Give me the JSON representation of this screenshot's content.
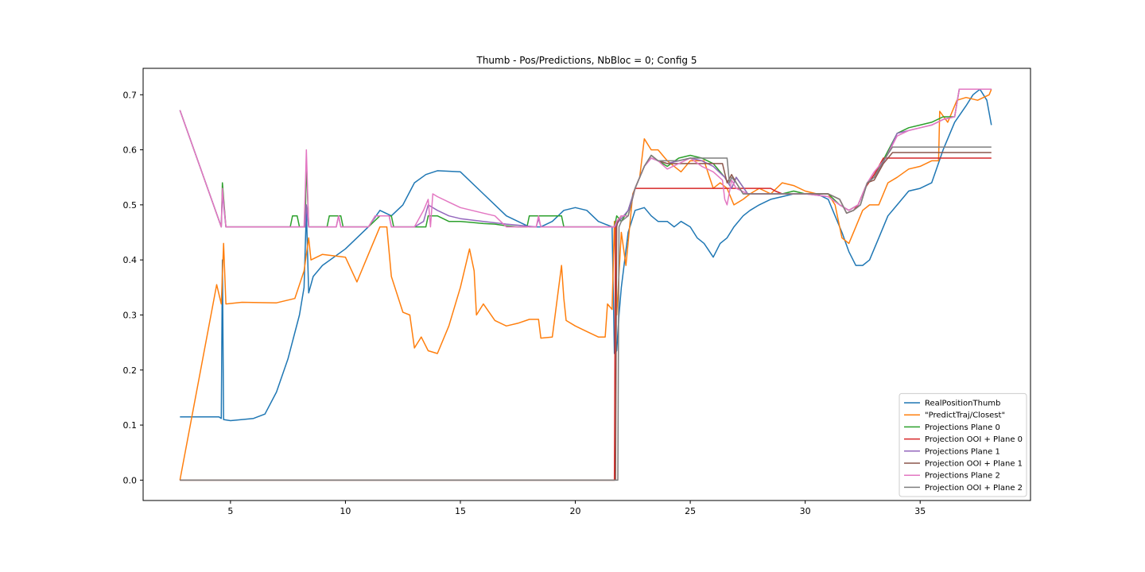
{
  "chart_data": {
    "type": "line",
    "title": "Thumb - Pos/Predictions, NbBloc = 0; Config 5",
    "xlabel": "",
    "ylabel": "",
    "xlim": [
      1.2,
      39.8
    ],
    "ylim": [
      -0.037,
      0.748
    ],
    "xticks": [
      5,
      10,
      15,
      20,
      25,
      30,
      35
    ],
    "yticks": [
      0.0,
      0.1,
      0.2,
      0.3,
      0.4,
      0.5,
      0.6,
      0.7
    ],
    "grid": false,
    "legend_position": "lower-right",
    "series": [
      {
        "name": "RealPositionThumb",
        "color": "#1f77b4",
        "x": [
          2.8,
          4.0,
          4.5,
          4.6,
          4.65,
          4.7,
          5.0,
          6.0,
          6.5,
          7.0,
          7.5,
          8.0,
          8.2,
          8.3,
          8.4,
          8.6,
          9.0,
          10.0,
          11.0,
          11.5,
          12.0,
          12.5,
          13.0,
          13.5,
          14.0,
          15.0,
          16.0,
          17.0,
          18.0,
          18.5,
          19.0,
          19.5,
          20.0,
          20.5,
          21.0,
          21.6,
          21.7,
          21.8,
          21.9,
          22.0,
          22.3,
          22.6,
          23.0,
          23.3,
          23.6,
          24.0,
          24.3,
          24.6,
          25.0,
          25.3,
          25.6,
          26.0,
          26.3,
          26.6,
          26.9,
          27.3,
          27.6,
          28.0,
          28.5,
          29.0,
          29.5,
          30.0,
          30.5,
          31.0,
          31.3,
          31.6,
          31.9,
          32.2,
          32.5,
          32.8,
          33.2,
          33.6,
          34.0,
          34.5,
          35.0,
          35.5,
          36.0,
          36.5,
          37.0,
          37.3,
          37.6,
          37.9,
          38.1
        ],
        "y": [
          0.115,
          0.115,
          0.115,
          0.112,
          0.4,
          0.11,
          0.108,
          0.112,
          0.12,
          0.16,
          0.22,
          0.3,
          0.35,
          0.49,
          0.34,
          0.37,
          0.39,
          0.42,
          0.46,
          0.49,
          0.48,
          0.5,
          0.54,
          0.555,
          0.562,
          0.56,
          0.52,
          0.48,
          0.46,
          0.46,
          0.47,
          0.49,
          0.495,
          0.49,
          0.47,
          0.46,
          0.23,
          0.235,
          0.3,
          0.35,
          0.45,
          0.49,
          0.495,
          0.48,
          0.47,
          0.47,
          0.46,
          0.47,
          0.46,
          0.44,
          0.43,
          0.405,
          0.43,
          0.44,
          0.46,
          0.48,
          0.49,
          0.5,
          0.51,
          0.515,
          0.52,
          0.52,
          0.52,
          0.51,
          0.48,
          0.45,
          0.415,
          0.39,
          0.39,
          0.4,
          0.44,
          0.48,
          0.5,
          0.525,
          0.53,
          0.54,
          0.6,
          0.65,
          0.68,
          0.7,
          0.71,
          0.69,
          0.645
        ]
      },
      {
        "name": "\"PredictTraj/Closest\"",
        "color": "#ff7f0e",
        "x": [
          2.8,
          4.4,
          4.6,
          4.7,
          4.8,
          5.5,
          7.0,
          7.8,
          8.2,
          8.4,
          8.5,
          9.0,
          10.0,
          10.5,
          11.0,
          11.5,
          11.8,
          12.0,
          12.5,
          12.8,
          13.0,
          13.3,
          13.6,
          14.0,
          14.5,
          15.0,
          15.4,
          15.6,
          15.7,
          16.0,
          16.5,
          17.0,
          17.5,
          18.0,
          18.4,
          18.5,
          19.0,
          19.4,
          19.5,
          19.6,
          20.0,
          20.5,
          21.0,
          21.3,
          21.4,
          21.6,
          21.7,
          21.8,
          22.0,
          22.2,
          22.5,
          22.8,
          23.0,
          23.3,
          23.6,
          24.0,
          24.3,
          24.6,
          25.0,
          25.3,
          25.6,
          26.0,
          26.3,
          26.6,
          26.9,
          27.3,
          27.6,
          28.0,
          28.5,
          29.0,
          29.5,
          30.0,
          30.5,
          31.0,
          31.3,
          31.6,
          31.9,
          32.2,
          32.5,
          32.8,
          33.2,
          33.6,
          34.0,
          34.5,
          35.0,
          35.5,
          35.8,
          35.85,
          36.2,
          36.6,
          37.0,
          37.5,
          38.0,
          38.1
        ],
        "y": [
          0.0,
          0.355,
          0.32,
          0.43,
          0.32,
          0.323,
          0.322,
          0.33,
          0.38,
          0.44,
          0.4,
          0.41,
          0.405,
          0.36,
          0.41,
          0.46,
          0.46,
          0.37,
          0.305,
          0.3,
          0.24,
          0.26,
          0.235,
          0.23,
          0.28,
          0.35,
          0.42,
          0.38,
          0.3,
          0.32,
          0.29,
          0.28,
          0.285,
          0.292,
          0.292,
          0.258,
          0.26,
          0.39,
          0.33,
          0.29,
          0.28,
          0.27,
          0.26,
          0.26,
          0.32,
          0.31,
          0.47,
          0.3,
          0.45,
          0.39,
          0.52,
          0.55,
          0.62,
          0.6,
          0.6,
          0.58,
          0.57,
          0.56,
          0.58,
          0.58,
          0.58,
          0.53,
          0.54,
          0.53,
          0.5,
          0.51,
          0.52,
          0.53,
          0.52,
          0.54,
          0.535,
          0.525,
          0.52,
          0.52,
          0.5,
          0.44,
          0.43,
          0.46,
          0.49,
          0.5,
          0.5,
          0.54,
          0.55,
          0.565,
          0.57,
          0.58,
          0.58,
          0.67,
          0.65,
          0.69,
          0.695,
          0.69,
          0.7,
          0.71
        ]
      },
      {
        "name": "Projections Plane 0",
        "color": "#2ca02c",
        "x": [
          2.8,
          4.6,
          4.65,
          4.8,
          5.0,
          7.6,
          7.7,
          7.9,
          8.0,
          8.25,
          8.3,
          8.4,
          8.5,
          9.0,
          9.2,
          9.3,
          9.8,
          9.9,
          11.0,
          11.5,
          12.0,
          12.1,
          13.0,
          13.5,
          13.6,
          14.0,
          14.5,
          15.0,
          15.5,
          16.0,
          16.5,
          17.0,
          17.5,
          17.9,
          18.0,
          19.4,
          19.5,
          20.0,
          21.5,
          21.7,
          21.8,
          22.0,
          22.3,
          22.6,
          23.0,
          23.3,
          23.6,
          24.0,
          24.5,
          25.0,
          25.5,
          26.0,
          26.5,
          26.8,
          27.0,
          27.5,
          28.0,
          28.5,
          29.0,
          29.5,
          30.0,
          30.5,
          31.0,
          31.5,
          31.9,
          32.3,
          32.7,
          33.0,
          33.5,
          34.0,
          34.5,
          35.0,
          35.5,
          36.0,
          36.5,
          36.7,
          37.0,
          38.1
        ],
        "y": [
          0.672,
          0.46,
          0.54,
          0.46,
          0.46,
          0.46,
          0.48,
          0.48,
          0.46,
          0.46,
          0.58,
          0.46,
          0.46,
          0.46,
          0.46,
          0.48,
          0.48,
          0.46,
          0.46,
          0.48,
          0.48,
          0.46,
          0.46,
          0.46,
          0.48,
          0.48,
          0.47,
          0.47,
          0.468,
          0.466,
          0.465,
          0.462,
          0.46,
          0.46,
          0.48,
          0.48,
          0.46,
          0.46,
          0.46,
          0.46,
          0.48,
          0.47,
          0.49,
          0.53,
          0.57,
          0.59,
          0.58,
          0.57,
          0.585,
          0.59,
          0.585,
          0.575,
          0.55,
          0.53,
          0.55,
          0.52,
          0.52,
          0.52,
          0.52,
          0.525,
          0.52,
          0.52,
          0.52,
          0.5,
          0.49,
          0.5,
          0.54,
          0.55,
          0.59,
          0.63,
          0.64,
          0.645,
          0.65,
          0.66,
          0.66,
          0.71,
          0.71,
          0.71
        ]
      },
      {
        "name": "Projection OOI + Plane 0",
        "color": "#d62728",
        "x": [
          2.8,
          21.7,
          21.75,
          21.8,
          22.0,
          22.3,
          22.6,
          28.5,
          28.7,
          29.0,
          30.0,
          31.0,
          31.5,
          31.8,
          32.1,
          32.3,
          32.6,
          33.0,
          33.4,
          33.8,
          38.1
        ],
        "y": [
          0.0,
          0.0,
          0.46,
          0.47,
          0.48,
          0.48,
          0.53,
          0.53,
          0.525,
          0.52,
          0.52,
          0.52,
          0.51,
          0.485,
          0.49,
          0.5,
          0.53,
          0.555,
          0.585,
          0.585,
          0.585
        ]
      },
      {
        "name": "Projections Plane 1",
        "color": "#9467bd",
        "x": [
          2.8,
          4.6,
          4.65,
          4.8,
          5.0,
          8.25,
          8.3,
          8.4,
          8.5,
          9.6,
          9.7,
          9.8,
          11.0,
          11.3,
          11.5,
          11.9,
          12.0,
          13.0,
          13.4,
          13.6,
          14.0,
          14.5,
          15.0,
          16.0,
          17.0,
          18.3,
          18.4,
          18.5,
          20.0,
          21.5,
          21.7,
          21.9,
          22.3,
          22.6,
          23.0,
          23.3,
          23.6,
          24.0,
          24.5,
          25.0,
          25.5,
          26.0,
          26.5,
          26.8,
          27.0,
          27.5,
          28.0,
          29.0,
          30.0,
          31.0,
          31.5,
          31.9,
          32.3,
          32.7,
          33.0,
          33.5,
          34.0,
          34.5,
          35.0,
          35.5,
          36.0,
          36.5,
          36.7,
          38.1
        ],
        "y": [
          0.672,
          0.46,
          0.52,
          0.46,
          0.46,
          0.46,
          0.5,
          0.46,
          0.46,
          0.46,
          0.48,
          0.46,
          0.46,
          0.48,
          0.48,
          0.48,
          0.46,
          0.46,
          0.47,
          0.5,
          0.49,
          0.48,
          0.475,
          0.47,
          0.465,
          0.46,
          0.475,
          0.46,
          0.46,
          0.46,
          0.46,
          0.47,
          0.49,
          0.53,
          0.57,
          0.585,
          0.58,
          0.575,
          0.58,
          0.585,
          0.58,
          0.57,
          0.55,
          0.53,
          0.55,
          0.52,
          0.52,
          0.52,
          0.52,
          0.515,
          0.5,
          0.49,
          0.5,
          0.54,
          0.55,
          0.585,
          0.63,
          0.635,
          0.64,
          0.645,
          0.655,
          0.66,
          0.71,
          0.71
        ]
      },
      {
        "name": "Projection OOI + Plane 1",
        "color": "#8c564b",
        "x": [
          2.8,
          21.75,
          21.8,
          21.85,
          22.0,
          22.3,
          22.6,
          23.0,
          23.3,
          23.6,
          24.0,
          24.5,
          25.0,
          25.5,
          26.0,
          26.4,
          26.6,
          26.8,
          27.0,
          27.3,
          27.6,
          28.0,
          29.0,
          30.0,
          31.0,
          31.5,
          31.8,
          32.1,
          32.4,
          32.7,
          33.0,
          33.4,
          33.8,
          38.1
        ],
        "y": [
          0.0,
          0.0,
          0.46,
          0.47,
          0.48,
          0.48,
          0.53,
          0.57,
          0.59,
          0.58,
          0.575,
          0.575,
          0.575,
          0.575,
          0.575,
          0.575,
          0.54,
          0.555,
          0.54,
          0.52,
          0.52,
          0.52,
          0.52,
          0.52,
          0.52,
          0.51,
          0.485,
          0.49,
          0.5,
          0.54,
          0.545,
          0.575,
          0.595,
          0.595
        ]
      },
      {
        "name": "Projections Plane 2",
        "color": "#e377c2",
        "x": [
          2.8,
          4.6,
          4.65,
          4.8,
          5.0,
          8.2,
          8.25,
          8.3,
          8.4,
          8.5,
          9.6,
          9.7,
          9.8,
          11.0,
          11.3,
          11.5,
          11.9,
          12.0,
          13.0,
          13.4,
          13.6,
          13.7,
          13.8,
          14.0,
          14.5,
          15.0,
          16.0,
          16.5,
          17.0,
          18.3,
          18.4,
          18.5,
          20.0,
          21.5,
          21.7,
          21.8,
          22.0,
          22.3,
          22.6,
          23.0,
          23.3,
          23.6,
          24.0,
          24.5,
          25.0,
          25.5,
          26.0,
          26.4,
          26.5,
          26.6,
          26.8,
          27.0,
          27.5,
          28.0,
          29.0,
          30.0,
          31.0,
          31.5,
          31.9,
          32.3,
          32.7,
          33.0,
          33.5,
          34.0,
          34.5,
          35.0,
          35.5,
          36.0,
          36.5,
          36.7,
          38.1
        ],
        "y": [
          0.672,
          0.46,
          0.53,
          0.46,
          0.46,
          0.46,
          0.52,
          0.6,
          0.46,
          0.46,
          0.46,
          0.48,
          0.46,
          0.46,
          0.48,
          0.48,
          0.48,
          0.46,
          0.46,
          0.49,
          0.51,
          0.46,
          0.52,
          0.515,
          0.505,
          0.495,
          0.485,
          0.48,
          0.46,
          0.46,
          0.48,
          0.46,
          0.46,
          0.46,
          0.46,
          0.47,
          0.48,
          0.48,
          0.53,
          0.57,
          0.585,
          0.58,
          0.565,
          0.575,
          0.585,
          0.57,
          0.56,
          0.545,
          0.51,
          0.5,
          0.545,
          0.53,
          0.52,
          0.52,
          0.52,
          0.52,
          0.515,
          0.5,
          0.49,
          0.5,
          0.54,
          0.56,
          0.585,
          0.625,
          0.635,
          0.64,
          0.645,
          0.655,
          0.66,
          0.71,
          0.71
        ]
      },
      {
        "name": "Projection OOI + Plane 2",
        "color": "#7f7f7f",
        "x": [
          2.8,
          21.85,
          21.9,
          22.0,
          22.3,
          22.6,
          23.0,
          23.3,
          23.6,
          24.0,
          24.5,
          25.0,
          25.5,
          26.0,
          26.6,
          26.7,
          26.8,
          27.0,
          27.3,
          27.6,
          28.0,
          29.0,
          30.0,
          31.0,
          31.5,
          31.8,
          32.1,
          32.4,
          32.7,
          33.0,
          33.4,
          33.8,
          38.1
        ],
        "y": [
          0.0,
          0.0,
          0.46,
          0.47,
          0.48,
          0.53,
          0.57,
          0.59,
          0.58,
          0.58,
          0.58,
          0.585,
          0.585,
          0.585,
          0.585,
          0.54,
          0.55,
          0.54,
          0.52,
          0.52,
          0.52,
          0.52,
          0.52,
          0.52,
          0.51,
          0.485,
          0.49,
          0.5,
          0.54,
          0.55,
          0.58,
          0.605,
          0.605
        ]
      }
    ]
  }
}
